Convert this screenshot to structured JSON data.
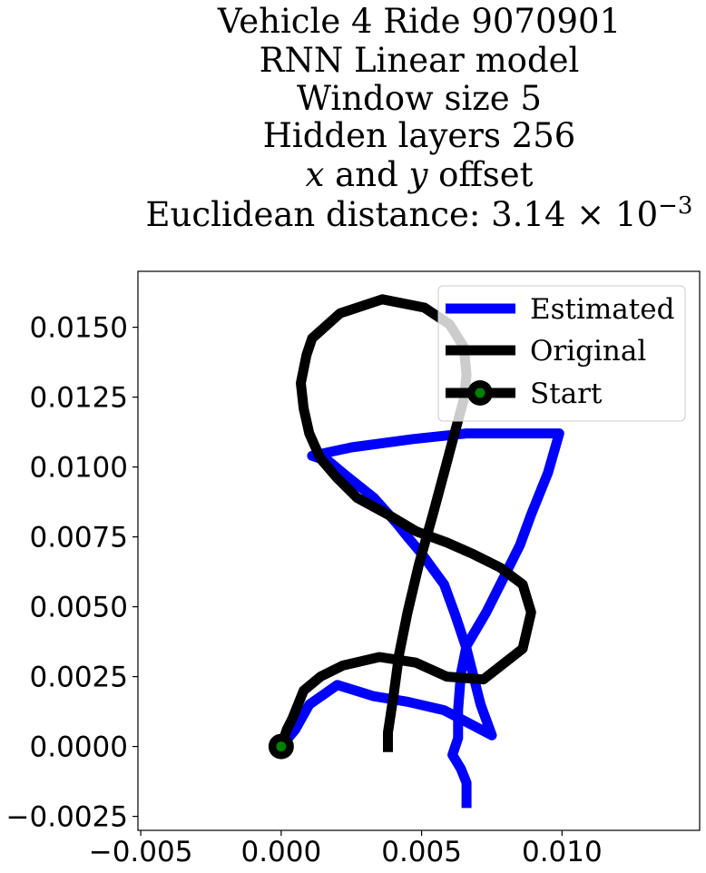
{
  "chart_data": {
    "type": "line",
    "title_lines": [
      "Vehicle 4 Ride 9070901",
      "RNN Linear model",
      "Window size 5",
      "Hidden layers 256",
      "x and y offset",
      "Euclidean distance: 3.14 × 10^-3"
    ],
    "xlabel": "",
    "ylabel": "",
    "xlim": [
      -0.0051,
      0.0149
    ],
    "ylim": [
      -0.003,
      0.017
    ],
    "xticks": [
      -0.005,
      0.0,
      0.005,
      0.01
    ],
    "xtick_labels": [
      "−0.005",
      "0.000",
      "0.005",
      "0.010"
    ],
    "yticks": [
      -0.0025,
      0.0,
      0.0025,
      0.005,
      0.0075,
      0.01,
      0.0125,
      0.015
    ],
    "ytick_labels": [
      "−0.0025",
      "0.0000",
      "0.0025",
      "0.0050",
      "0.0075",
      "0.0100",
      "0.0125",
      "0.0150"
    ],
    "grid": false,
    "legend_position": "top-right",
    "series": [
      {
        "name": "Estimated",
        "color": "#0000ff",
        "points": [
          [
            0.0,
            0.0
          ],
          [
            0.0005,
            0.0006
          ],
          [
            0.001,
            0.0015
          ],
          [
            0.002,
            0.0022
          ],
          [
            0.0033,
            0.0018
          ],
          [
            0.0045,
            0.0016
          ],
          [
            0.0058,
            0.0013
          ],
          [
            0.0075,
            0.0004
          ],
          [
            0.0071,
            0.0015
          ],
          [
            0.0068,
            0.0027
          ],
          [
            0.0066,
            0.0035
          ],
          [
            0.0062,
            0.0047
          ],
          [
            0.0058,
            0.0058
          ],
          [
            0.005,
            0.0069
          ],
          [
            0.0045,
            0.0075
          ],
          [
            0.0041,
            0.008
          ],
          [
            0.0033,
            0.0089
          ],
          [
            0.0023,
            0.0097
          ],
          [
            0.0017,
            0.0102
          ],
          [
            0.0011,
            0.0104
          ],
          [
            0.0025,
            0.0107
          ],
          [
            0.0047,
            0.011
          ],
          [
            0.0066,
            0.0112
          ],
          [
            0.0099,
            0.0112
          ],
          [
            0.0095,
            0.0098
          ],
          [
            0.0089,
            0.0083
          ],
          [
            0.0085,
            0.0072
          ],
          [
            0.0078,
            0.0058
          ],
          [
            0.0073,
            0.0048
          ],
          [
            0.0066,
            0.0036
          ],
          [
            0.0064,
            0.0026
          ],
          [
            0.0063,
            0.0013
          ],
          [
            0.0063,
            0.0003
          ],
          [
            0.0061,
            -0.0003
          ],
          [
            0.0064,
            -0.0008
          ],
          [
            0.0066,
            -0.0013
          ],
          [
            0.0066,
            -0.0022
          ]
        ]
      },
      {
        "name": "Original",
        "color": "#000000",
        "points": [
          [
            0.0,
            0.0
          ],
          [
            0.0002,
            0.0006
          ],
          [
            0.0004,
            0.001
          ],
          [
            0.0006,
            0.0015
          ],
          [
            0.0008,
            0.002
          ],
          [
            0.0014,
            0.0025
          ],
          [
            0.0022,
            0.0029
          ],
          [
            0.0035,
            0.0032
          ],
          [
            0.0048,
            0.003
          ],
          [
            0.0059,
            0.0025
          ],
          [
            0.0072,
            0.0024
          ],
          [
            0.0086,
            0.0035
          ],
          [
            0.0089,
            0.0048
          ],
          [
            0.0086,
            0.0058
          ],
          [
            0.0078,
            0.0064
          ],
          [
            0.0068,
            0.0069
          ],
          [
            0.0059,
            0.0073
          ],
          [
            0.0048,
            0.0077
          ],
          [
            0.0038,
            0.0083
          ],
          [
            0.0027,
            0.0089
          ],
          [
            0.002,
            0.0096
          ],
          [
            0.0014,
            0.0103
          ],
          [
            0.001,
            0.0112
          ],
          [
            0.0008,
            0.0121
          ],
          [
            0.0007,
            0.013
          ],
          [
            0.0009,
            0.014
          ],
          [
            0.0011,
            0.0146
          ],
          [
            0.0021,
            0.0155
          ],
          [
            0.0036,
            0.016
          ],
          [
            0.0051,
            0.0157
          ],
          [
            0.006,
            0.0151
          ],
          [
            0.0065,
            0.0143
          ],
          [
            0.0066,
            0.0133
          ],
          [
            0.0065,
            0.0124
          ],
          [
            0.0062,
            0.0113
          ],
          [
            0.0058,
            0.0098
          ],
          [
            0.0054,
            0.0083
          ],
          [
            0.0049,
            0.0065
          ],
          [
            0.0045,
            0.0048
          ],
          [
            0.0042,
            0.0033
          ],
          [
            0.004,
            0.0018
          ],
          [
            0.0038,
            0.0005
          ],
          [
            0.0038,
            -0.0002
          ]
        ]
      },
      {
        "name": "Start",
        "color": "#000000",
        "marker_color": "#008000",
        "points": [
          [
            0.0,
            0.0
          ]
        ]
      }
    ]
  }
}
